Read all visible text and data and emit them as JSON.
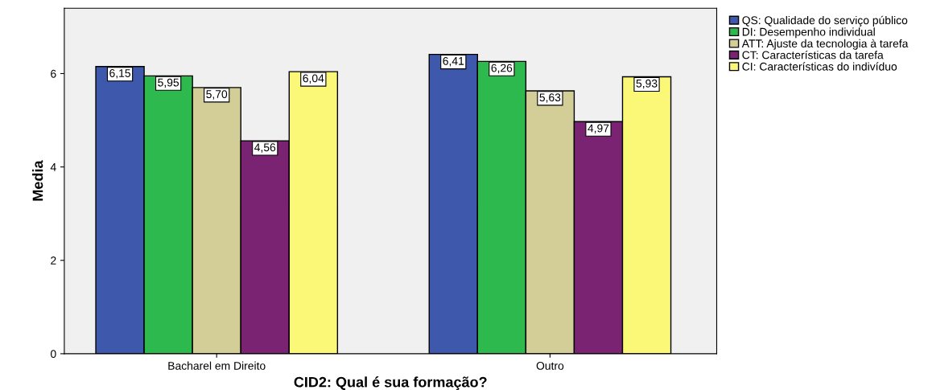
{
  "chart_data": {
    "type": "bar",
    "xlabel": "CID2: Qual é sua formação?",
    "ylabel": "Media",
    "categories": [
      "Bacharel em Direito",
      "Outro"
    ],
    "series": [
      {
        "name": "QS: Qualidade do serviço público",
        "color": "#3e58ac",
        "values": [
          6.15,
          6.41
        ],
        "value_labels": [
          "6,15",
          "6,41"
        ]
      },
      {
        "name": "DI: Desempenho individual",
        "color": "#2db94d",
        "values": [
          5.95,
          6.26
        ],
        "value_labels": [
          "5,95",
          "6,26"
        ]
      },
      {
        "name": "ATT: Ajuste da tecnologia à tarefa",
        "color": "#d3ce97",
        "values": [
          5.7,
          5.63
        ],
        "value_labels": [
          "5,70",
          "5,63"
        ]
      },
      {
        "name": "CT: Características da tarefa",
        "color": "#7b2373",
        "values": [
          4.56,
          4.97
        ],
        "value_labels": [
          "4,56",
          "4,97"
        ]
      },
      {
        "name": "CI: Características do indivíduo",
        "color": "#fbf878",
        "values": [
          6.04,
          5.93
        ],
        "value_labels": [
          "6,04",
          "5,93"
        ]
      }
    ],
    "ylim": [
      0,
      7.4
    ],
    "yticks": [
      0,
      2,
      4,
      6
    ],
    "grid": false,
    "legend": "right"
  }
}
